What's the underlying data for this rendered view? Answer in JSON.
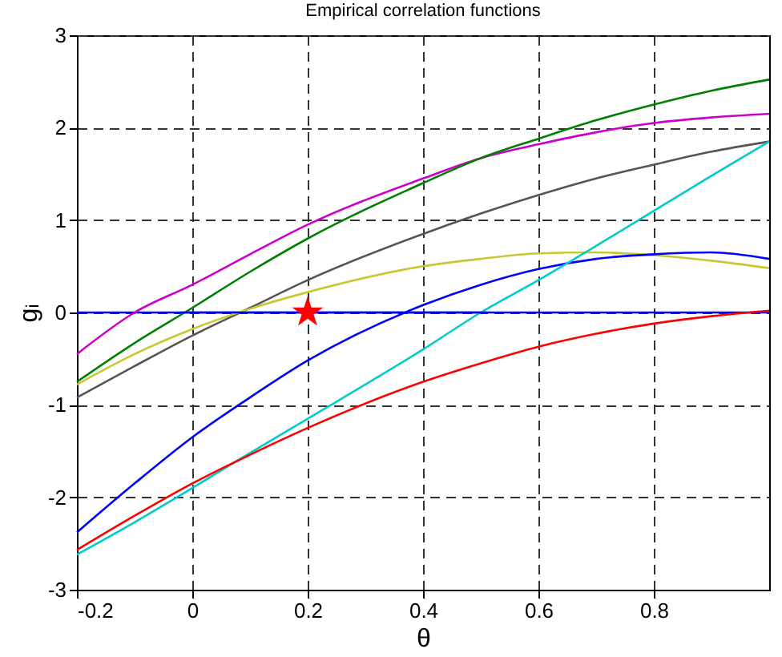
{
  "chart_data": {
    "type": "line",
    "title": "Empirical correlation functions",
    "xlabel": "θ",
    "ylabel": "gᵢ",
    "xlim": [
      -0.2,
      1.0
    ],
    "xticks": [
      -0.2,
      0,
      0.2,
      0.4,
      0.6,
      0.8
    ],
    "ylim": [
      -3,
      3
    ],
    "yticks": [
      -3,
      -2,
      -1,
      0,
      1,
      2,
      3
    ],
    "grid": true,
    "x": [
      -0.2,
      -0.1,
      0,
      0.1,
      0.2,
      0.4,
      0.5,
      0.6,
      0.7,
      0.8,
      0.9,
      1.0
    ],
    "series": [
      {
        "color": "#cc00cc",
        "values": [
          -0.45,
          0.0,
          0.3,
          0.63,
          0.95,
          1.45,
          1.67,
          1.82,
          1.95,
          2.05,
          2.11,
          2.15
        ]
      },
      {
        "color": "#008000",
        "values": [
          -0.75,
          -0.33,
          0.05,
          0.44,
          0.8,
          1.4,
          1.67,
          1.88,
          2.08,
          2.25,
          2.4,
          2.52
        ]
      },
      {
        "color": "#555555",
        "values": [
          -0.92,
          -0.58,
          -0.25,
          0.05,
          0.35,
          0.85,
          1.07,
          1.27,
          1.45,
          1.6,
          1.74,
          1.85
        ]
      },
      {
        "color": "#c8c832",
        "values": [
          -0.78,
          -0.45,
          -0.18,
          0.04,
          0.22,
          0.5,
          0.58,
          0.64,
          0.65,
          0.62,
          0.56,
          0.48
        ]
      },
      {
        "color": "#0000ff",
        "values": [
          -2.38,
          -1.85,
          -1.35,
          -0.92,
          -0.52,
          0.08,
          0.3,
          0.47,
          0.58,
          0.63,
          0.65,
          0.58
        ]
      },
      {
        "color": "#00cccc",
        "values": [
          -2.62,
          -2.27,
          -1.9,
          -1.52,
          -1.15,
          -0.4,
          0.0,
          0.35,
          0.72,
          1.1,
          1.48,
          1.85
        ]
      },
      {
        "color": "#ff0000",
        "values": [
          -2.57,
          -2.2,
          -1.85,
          -1.54,
          -1.25,
          -0.75,
          -0.55,
          -0.37,
          -0.23,
          -0.12,
          -0.04,
          0.02
        ]
      },
      {
        "type": "line",
        "color": "#0000ff",
        "x": [
          -0.02,
          0.51
        ],
        "values": [
          0,
          0
        ]
      },
      {
        "type": "scatter",
        "color": "#ff0000",
        "marker": "star",
        "x": [
          0.2
        ],
        "values": [
          0
        ]
      }
    ],
    "ref_lines": [
      {
        "axis": "y",
        "value": 0,
        "color": "#0000ff"
      }
    ]
  }
}
